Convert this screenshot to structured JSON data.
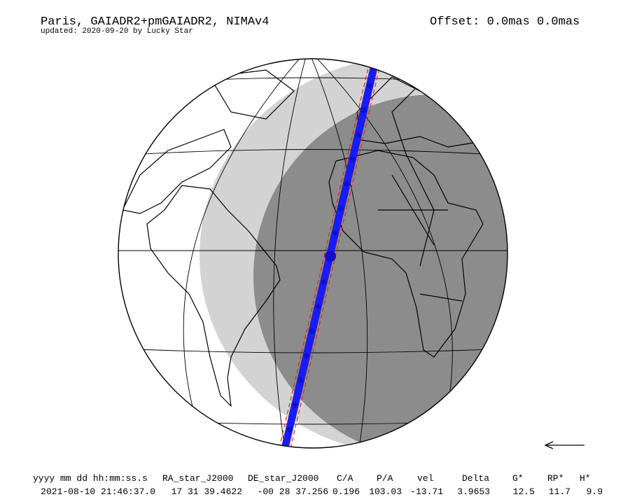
{
  "header": {
    "title": "Paris, GAIADR2+pmGAIADR2, NIMAv4",
    "subtitle": "updated: 2020-09-20 by Lucky Star",
    "offset": "Offset: 0.0mas 0.0mas"
  },
  "table": {
    "columns": [
      "yyyy mm dd hh:mm:ss.s",
      "RA_star_J2000",
      "DE_star_J2000",
      "C/A",
      "P/A",
      "vel",
      "Delta",
      "G*",
      "RP*",
      "H*"
    ],
    "rows": [
      [
        "2021-08-10 21:46:37.0",
        "17 31 39.4622",
        "-00 28 37.256",
        "0.196",
        "103.03",
        "-13.71",
        "3.9653",
        "12.5",
        "11.7",
        "9.9"
      ]
    ]
  }
}
